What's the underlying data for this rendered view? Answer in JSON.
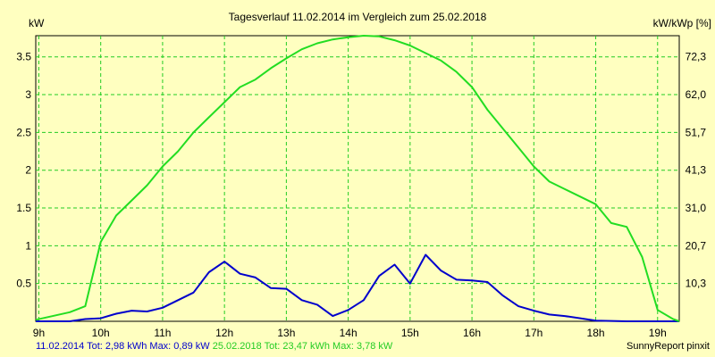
{
  "chart_data": {
    "type": "line",
    "title": "Tagesverlauf 11.02.2014 im Vergleich zum 25.02.2018",
    "ylabel_left": "kW",
    "ylabel_right": "kW/kWp [%]",
    "ylim": [
      0,
      3.78
    ],
    "x_range": [
      8.95,
      19.35
    ],
    "x_ticks": [
      {
        "x": 9,
        "label": "9h"
      },
      {
        "x": 10,
        "label": "10h"
      },
      {
        "x": 11,
        "label": "11h"
      },
      {
        "x": 12,
        "label": "12h"
      },
      {
        "x": 13,
        "label": "13h"
      },
      {
        "x": 14,
        "label": "14h"
      },
      {
        "x": 15,
        "label": "15h"
      },
      {
        "x": 16,
        "label": "16h"
      },
      {
        "x": 17,
        "label": "17h"
      },
      {
        "x": 18,
        "label": "18h"
      },
      {
        "x": 19,
        "label": "19h"
      }
    ],
    "y_ticks_left": [
      {
        "v": 0.5,
        "label": "0.5"
      },
      {
        "v": 1,
        "label": "1"
      },
      {
        "v": 1.5,
        "label": "1.5"
      },
      {
        "v": 2,
        "label": "2"
      },
      {
        "v": 2.5,
        "label": "2.5"
      },
      {
        "v": 3,
        "label": "3"
      },
      {
        "v": 3.5,
        "label": "3.5"
      }
    ],
    "y_ticks_right": [
      {
        "v": 0.5,
        "label": "10,3"
      },
      {
        "v": 1,
        "label": "20,7"
      },
      {
        "v": 1.5,
        "label": "31,0"
      },
      {
        "v": 2,
        "label": "41,3"
      },
      {
        "v": 2.5,
        "label": "51,7"
      },
      {
        "v": 3,
        "label": "62,0"
      },
      {
        "v": 3.5,
        "label": "72,3"
      }
    ],
    "grid": true,
    "series": [
      {
        "name": "11.02.2014",
        "color": "#0000cc",
        "points": [
          [
            8.95,
            0.0
          ],
          [
            9.5,
            0.0
          ],
          [
            9.75,
            0.03
          ],
          [
            10.0,
            0.04
          ],
          [
            10.25,
            0.1
          ],
          [
            10.5,
            0.14
          ],
          [
            10.75,
            0.13
          ],
          [
            11.0,
            0.18
          ],
          [
            11.25,
            0.28
          ],
          [
            11.5,
            0.38
          ],
          [
            11.75,
            0.65
          ],
          [
            12.0,
            0.79
          ],
          [
            12.25,
            0.63
          ],
          [
            12.5,
            0.58
          ],
          [
            12.75,
            0.44
          ],
          [
            13.0,
            0.43
          ],
          [
            13.25,
            0.28
          ],
          [
            13.5,
            0.22
          ],
          [
            13.75,
            0.07
          ],
          [
            14.0,
            0.15
          ],
          [
            14.25,
            0.28
          ],
          [
            14.5,
            0.6
          ],
          [
            14.75,
            0.75
          ],
          [
            15.0,
            0.5
          ],
          [
            15.25,
            0.88
          ],
          [
            15.5,
            0.67
          ],
          [
            15.75,
            0.55
          ],
          [
            16.0,
            0.54
          ],
          [
            16.25,
            0.52
          ],
          [
            16.5,
            0.34
          ],
          [
            16.75,
            0.2
          ],
          [
            17.0,
            0.14
          ],
          [
            17.25,
            0.09
          ],
          [
            17.5,
            0.07
          ],
          [
            17.75,
            0.04
          ],
          [
            18.0,
            0.01
          ],
          [
            18.5,
            0.0
          ],
          [
            19.35,
            0.0
          ]
        ]
      },
      {
        "name": "25.02.2018",
        "color": "#22dd22",
        "points": [
          [
            8.95,
            0.02
          ],
          [
            9.5,
            0.12
          ],
          [
            9.75,
            0.2
          ],
          [
            10.0,
            1.05
          ],
          [
            10.25,
            1.4
          ],
          [
            10.5,
            1.6
          ],
          [
            10.75,
            1.8
          ],
          [
            11.0,
            2.05
          ],
          [
            11.25,
            2.25
          ],
          [
            11.5,
            2.5
          ],
          [
            11.75,
            2.7
          ],
          [
            12.0,
            2.9
          ],
          [
            12.25,
            3.1
          ],
          [
            12.5,
            3.2
          ],
          [
            12.75,
            3.35
          ],
          [
            13.0,
            3.48
          ],
          [
            13.25,
            3.6
          ],
          [
            13.5,
            3.68
          ],
          [
            13.75,
            3.73
          ],
          [
            14.0,
            3.76
          ],
          [
            14.25,
            3.78
          ],
          [
            14.5,
            3.77
          ],
          [
            14.75,
            3.72
          ],
          [
            15.0,
            3.65
          ],
          [
            15.25,
            3.55
          ],
          [
            15.5,
            3.45
          ],
          [
            15.75,
            3.3
          ],
          [
            16.0,
            3.1
          ],
          [
            16.25,
            2.8
          ],
          [
            16.5,
            2.55
          ],
          [
            16.75,
            2.3
          ],
          [
            17.0,
            2.05
          ],
          [
            17.25,
            1.85
          ],
          [
            17.5,
            1.75
          ],
          [
            17.75,
            1.65
          ],
          [
            18.0,
            1.55
          ],
          [
            18.25,
            1.3
          ],
          [
            18.5,
            1.25
          ],
          [
            18.75,
            0.85
          ],
          [
            19.0,
            0.15
          ],
          [
            19.25,
            0.03
          ],
          [
            19.35,
            0.0
          ]
        ]
      }
    ]
  },
  "footer": {
    "series1_stats": "11.02.2014 Tot: 2,98 kWh Max: 0,89 kW",
    "series2_stats": "25.02.2018 Tot: 23,47 kWh Max: 3,78 kW",
    "brand": "SunnyReport pinxit"
  }
}
